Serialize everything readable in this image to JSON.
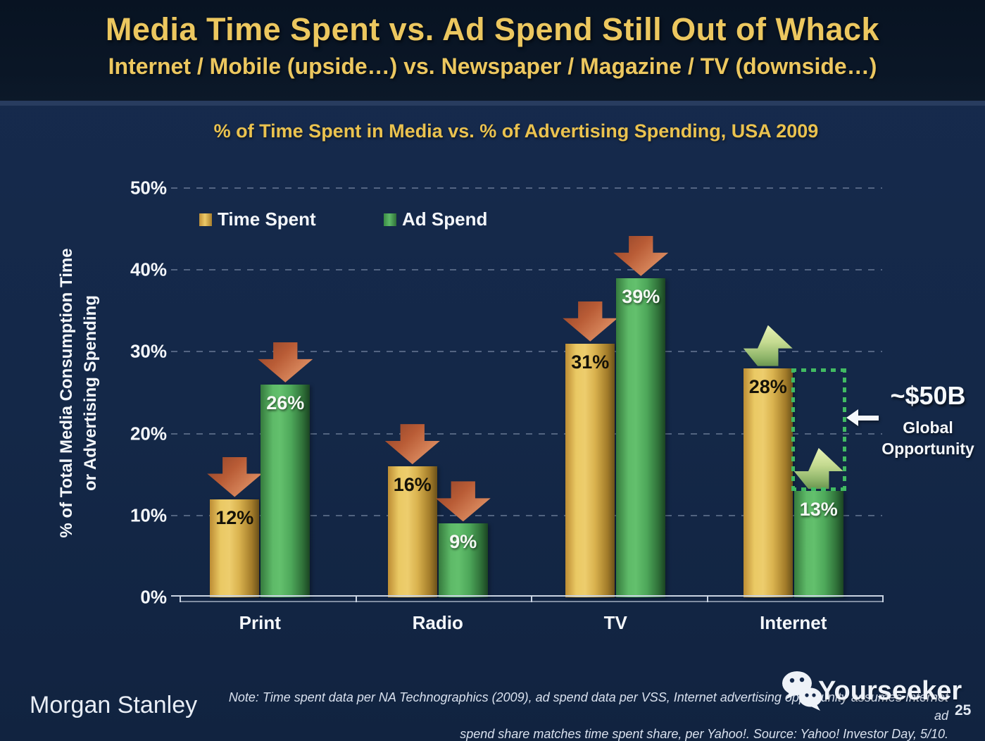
{
  "header": {
    "title": "Media Time Spent vs. Ad Spend Still Out of Whack",
    "subtitle": "Internet / Mobile (upside…) vs. Newspaper / Magazine / TV (downside…)"
  },
  "chart_data": {
    "type": "bar",
    "title": "% of Time Spent in Media vs. % of Advertising Spending, USA 2009",
    "categories": [
      "Print",
      "Radio",
      "TV",
      "Internet"
    ],
    "series": [
      {
        "name": "Time Spent",
        "color": "#e0b551",
        "values": [
          12,
          16,
          31,
          28
        ],
        "trends": [
          "down",
          "down",
          "down",
          "up"
        ]
      },
      {
        "name": "Ad Spend",
        "color": "#54b05f",
        "values": [
          26,
          9,
          39,
          13
        ],
        "trends": [
          "down",
          "down",
          "down",
          "up"
        ]
      }
    ],
    "ylabel_line1": "% of Total Media Consumption Time",
    "ylabel_line2": "or Advertising Spending",
    "y_ticks": [
      "0%",
      "10%",
      "20%",
      "30%",
      "40%",
      "50%"
    ],
    "ylim": [
      0,
      50
    ],
    "grid": "dashed horizontal at 10% steps",
    "legend_position": "top-left inside plot",
    "opportunity_box": {
      "category": "Internet",
      "top_value": 28,
      "bottom_value": 13
    },
    "annotation": {
      "value": "~$50B",
      "label_line1": "Global",
      "label_line2": "Opportunity"
    }
  },
  "colors": {
    "background_top_band": "#0a1626",
    "background_main": "#14284a",
    "title_gold": "#ecc75f",
    "bar_gold": "#e0b551",
    "bar_green": "#54b05f",
    "trend_down_arrow": "#c2673f",
    "trend_up_arrow": "#bcd488",
    "opportunity_box_green": "#41bb62",
    "text_white": "#f4f7fb"
  },
  "footer": {
    "brand": "Morgan Stanley",
    "note_line1": "Note: Time spent data per NA Technographics (2009), ad spend data per VSS, Internet advertising opportunity assumes Internet ad",
    "note_line2": "spend share matches time spent share, per Yahoo!. Source: Yahoo! Investor Day, 5/10.",
    "watermark": "Yourseeker",
    "page_number": "25"
  }
}
